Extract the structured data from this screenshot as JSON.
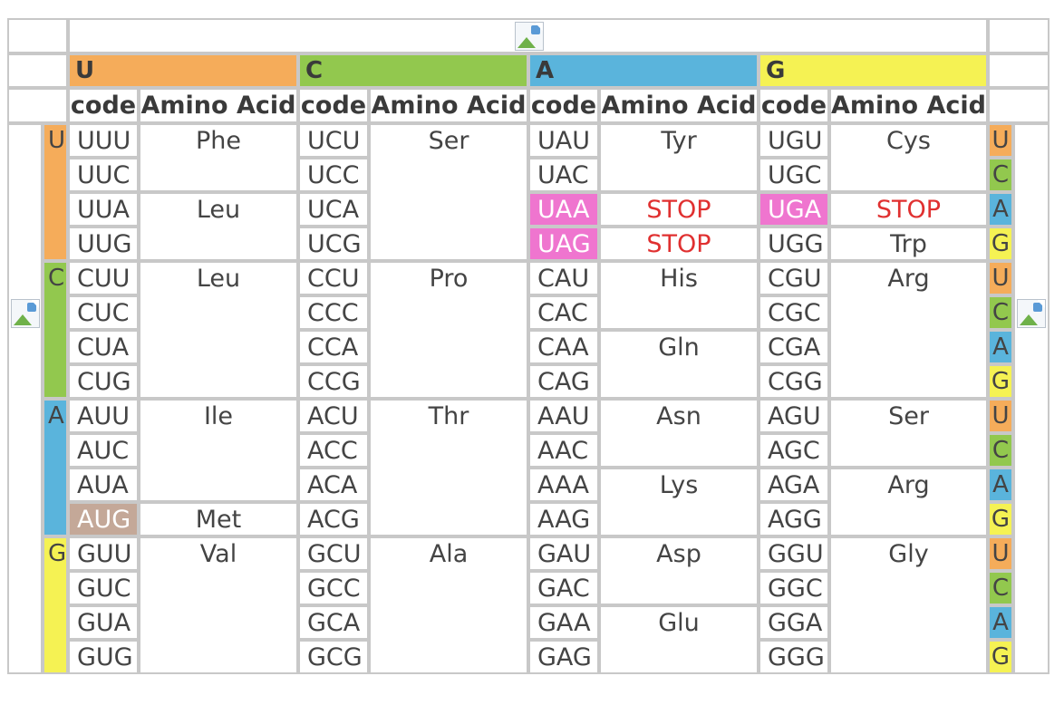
{
  "colors": {
    "U": "#f5ac5a",
    "C": "#92c84e",
    "A": "#5ab4dc",
    "G": "#f5f253",
    "stop_highlight": "#ef75cf",
    "start_highlight": "#c4a898",
    "stop_text": "#e03030"
  },
  "header": {
    "image_icon": "broken-image-icon",
    "second_base": [
      "U",
      "C",
      "A",
      "G"
    ],
    "subheaders": [
      {
        "code": "code",
        "amino": "Amino Acid"
      },
      {
        "code": "code",
        "amino": "Amino Acid"
      },
      {
        "code": "code",
        "amino": "Amino Acid"
      },
      {
        "code": "code",
        "amino": "Amino Acid"
      }
    ]
  },
  "first_base": [
    "U",
    "C",
    "A",
    "G"
  ],
  "third_base": [
    "U",
    "C",
    "A",
    "G"
  ],
  "side_icons": [
    "broken-image-icon",
    "broken-image-icon"
  ],
  "table": [
    {
      "first": "U",
      "columns": [
        {
          "codes": [
            "UUU",
            "UUC",
            "UUA",
            "UUG"
          ],
          "aminos": [
            "Phe",
            "",
            "Leu",
            ""
          ]
        },
        {
          "codes": [
            "UCU",
            "UCC",
            "UCA",
            "UCG"
          ],
          "aminos": [
            "Ser",
            "",
            "",
            ""
          ]
        },
        {
          "codes": [
            "UAU",
            "UAC",
            "UAA",
            "UAG"
          ],
          "aminos": [
            "Tyr",
            "",
            "STOP",
            "STOP"
          ]
        },
        {
          "codes": [
            "UGU",
            "UGC",
            "UGA",
            "UGG"
          ],
          "aminos": [
            "Cys",
            "",
            "STOP",
            "Trp"
          ]
        }
      ]
    },
    {
      "first": "C",
      "columns": [
        {
          "codes": [
            "CUU",
            "CUC",
            "CUA",
            "CUG"
          ],
          "aminos": [
            "Leu",
            "",
            "",
            ""
          ]
        },
        {
          "codes": [
            "CCU",
            "CCC",
            "CCA",
            "CCG"
          ],
          "aminos": [
            "Pro",
            "",
            "",
            ""
          ]
        },
        {
          "codes": [
            "CAU",
            "CAC",
            "CAA",
            "CAG"
          ],
          "aminos": [
            "His",
            "",
            "Gln",
            ""
          ]
        },
        {
          "codes": [
            "CGU",
            "CGC",
            "CGA",
            "CGG"
          ],
          "aminos": [
            "Arg",
            "",
            "",
            ""
          ]
        }
      ]
    },
    {
      "first": "A",
      "columns": [
        {
          "codes": [
            "AUU",
            "AUC",
            "AUA",
            "AUG"
          ],
          "aminos": [
            "Ile",
            "",
            "",
            "Met"
          ]
        },
        {
          "codes": [
            "ACU",
            "ACC",
            "ACA",
            "ACG"
          ],
          "aminos": [
            "Thr",
            "",
            "",
            ""
          ]
        },
        {
          "codes": [
            "AAU",
            "AAC",
            "AAA",
            "AAG"
          ],
          "aminos": [
            "Asn",
            "",
            "Lys",
            ""
          ]
        },
        {
          "codes": [
            "AGU",
            "AGC",
            "AGA",
            "AGG"
          ],
          "aminos": [
            "Ser",
            "",
            "Arg",
            ""
          ]
        }
      ]
    },
    {
      "first": "G",
      "columns": [
        {
          "codes": [
            "GUU",
            "GUC",
            "GUA",
            "GUG"
          ],
          "aminos": [
            "Val",
            "",
            "",
            ""
          ]
        },
        {
          "codes": [
            "GCU",
            "GCC",
            "GCA",
            "GCG"
          ],
          "aminos": [
            "Ala",
            "",
            "",
            ""
          ]
        },
        {
          "codes": [
            "GAU",
            "GAC",
            "GAA",
            "GAG"
          ],
          "aminos": [
            "Asp",
            "",
            "Glu",
            ""
          ]
        },
        {
          "codes": [
            "GGU",
            "GGC",
            "GGA",
            "GGG"
          ],
          "aminos": [
            "Gly",
            "",
            "",
            ""
          ]
        }
      ]
    }
  ],
  "highlights": {
    "stop_codons": [
      "UAA",
      "UAG",
      "UGA"
    ],
    "start_codons": [
      "AUG"
    ]
  }
}
